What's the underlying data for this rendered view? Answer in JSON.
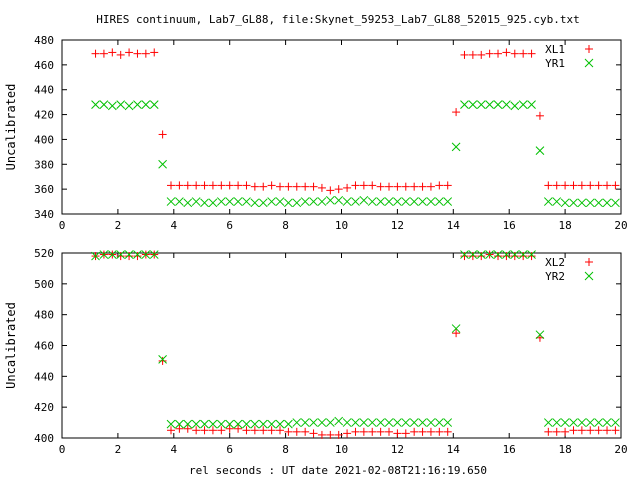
{
  "title": "HIRES continuum, Lab7_GL88, file:Skynet_59253_Lab7_GL88_52015_925.cyb.txt",
  "xlabel": "rel seconds : UT date 2021-02-08T21:16:19.650",
  "colors": {
    "red": "#ff0000",
    "green": "#00c000"
  },
  "chart_data": [
    {
      "type": "scatter",
      "xlabel": "",
      "ylabel": "Uncalibrated",
      "xlim": [
        0,
        20
      ],
      "ylim": [
        340,
        480
      ],
      "xticks": [
        0,
        2,
        4,
        6,
        8,
        10,
        12,
        14,
        16,
        18,
        20
      ],
      "yticks": [
        340,
        360,
        380,
        400,
        420,
        440,
        460,
        480
      ],
      "grid": false,
      "legend": "top-right",
      "x": [
        1.2,
        1.5,
        1.8,
        2.1,
        2.4,
        2.7,
        3.0,
        3.3,
        3.6,
        3.9,
        4.2,
        4.5,
        4.8,
        5.1,
        5.4,
        5.7,
        6.0,
        6.3,
        6.6,
        6.9,
        7.2,
        7.5,
        7.8,
        8.1,
        8.4,
        8.7,
        9.0,
        9.3,
        9.6,
        9.9,
        10.2,
        10.5,
        10.8,
        11.1,
        11.4,
        11.7,
        12.0,
        12.3,
        12.6,
        12.9,
        13.2,
        13.5,
        13.8,
        14.1,
        14.4,
        14.7,
        15.0,
        15.3,
        15.6,
        15.9,
        16.2,
        16.5,
        16.8,
        17.1,
        17.4,
        17.7,
        18.0,
        18.3,
        18.6,
        18.9,
        19.2,
        19.5,
        19.8
      ],
      "series": [
        {
          "name": "XL1",
          "marker": "plus",
          "color": "#ff0000",
          "values": [
            469,
            469,
            470,
            468,
            470,
            469,
            469,
            470,
            404,
            363,
            363,
            363,
            363,
            363,
            363,
            363,
            363,
            363,
            363,
            362,
            362,
            363,
            362,
            362,
            362,
            362,
            362,
            361,
            359,
            360,
            361,
            363,
            363,
            363,
            362,
            362,
            362,
            362,
            362,
            362,
            362,
            363,
            363,
            422,
            468,
            468,
            468,
            469,
            469,
            470,
            469,
            469,
            469,
            419,
            363,
            363,
            363,
            363,
            363,
            363,
            363,
            363,
            363
          ]
        },
        {
          "name": "YR1",
          "marker": "cross",
          "color": "#00c000",
          "values": [
            428,
            428,
            427,
            428,
            427,
            428,
            428,
            428,
            380,
            350,
            350,
            349,
            350,
            349,
            349,
            350,
            350,
            350,
            350,
            349,
            349,
            350,
            350,
            349,
            349,
            350,
            350,
            350,
            351,
            351,
            350,
            350,
            351,
            350,
            350,
            350,
            350,
            350,
            350,
            350,
            350,
            350,
            350,
            394,
            428,
            428,
            428,
            428,
            428,
            428,
            427,
            428,
            428,
            391,
            350,
            350,
            349,
            349,
            349,
            349,
            349,
            349,
            349
          ]
        }
      ]
    },
    {
      "type": "scatter",
      "xlabel": "rel seconds : UT date 2021-02-08T21:16:19.650",
      "ylabel": "Uncalibrated",
      "xlim": [
        0,
        20
      ],
      "ylim": [
        400,
        520
      ],
      "xticks": [
        0,
        2,
        4,
        6,
        8,
        10,
        12,
        14,
        16,
        18,
        20
      ],
      "yticks": [
        400,
        420,
        440,
        460,
        480,
        500,
        520
      ],
      "grid": false,
      "legend": "top-right",
      "x": [
        1.2,
        1.5,
        1.8,
        2.1,
        2.4,
        2.7,
        3.0,
        3.3,
        3.6,
        3.9,
        4.2,
        4.5,
        4.8,
        5.1,
        5.4,
        5.7,
        6.0,
        6.3,
        6.6,
        6.9,
        7.2,
        7.5,
        7.8,
        8.1,
        8.4,
        8.7,
        9.0,
        9.3,
        9.6,
        9.9,
        10.2,
        10.5,
        10.8,
        11.1,
        11.4,
        11.7,
        12.0,
        12.3,
        12.6,
        12.9,
        13.2,
        13.5,
        13.8,
        14.1,
        14.4,
        14.7,
        15.0,
        15.3,
        15.6,
        15.9,
        16.2,
        16.5,
        16.8,
        17.1,
        17.4,
        17.7,
        18.0,
        18.3,
        18.6,
        18.9,
        19.2,
        19.5,
        19.8
      ],
      "series": [
        {
          "name": "XL2",
          "marker": "plus",
          "color": "#ff0000",
          "values": [
            518,
            519,
            519,
            518,
            518,
            518,
            519,
            519,
            450,
            405,
            406,
            406,
            405,
            405,
            405,
            405,
            406,
            406,
            405,
            405,
            405,
            405,
            405,
            404,
            404,
            404,
            403,
            402,
            402,
            402,
            403,
            404,
            404,
            404,
            404,
            404,
            403,
            403,
            404,
            404,
            404,
            404,
            404,
            468,
            518,
            518,
            518,
            519,
            518,
            518,
            518,
            518,
            518,
            465,
            404,
            404,
            404,
            405,
            405,
            405,
            405,
            405,
            405
          ]
        },
        {
          "name": "YR2",
          "marker": "cross",
          "color": "#00c000",
          "values": [
            518,
            519,
            519,
            519,
            519,
            519,
            519,
            519,
            451,
            409,
            409,
            409,
            409,
            409,
            409,
            409,
            409,
            409,
            409,
            409,
            409,
            409,
            409,
            409,
            410,
            410,
            410,
            410,
            410,
            411,
            410,
            410,
            410,
            410,
            410,
            410,
            410,
            410,
            410,
            410,
            410,
            410,
            410,
            471,
            519,
            519,
            519,
            519,
            519,
            519,
            519,
            519,
            519,
            467,
            410,
            410,
            410,
            410,
            410,
            410,
            410,
            410,
            410
          ]
        }
      ]
    }
  ]
}
